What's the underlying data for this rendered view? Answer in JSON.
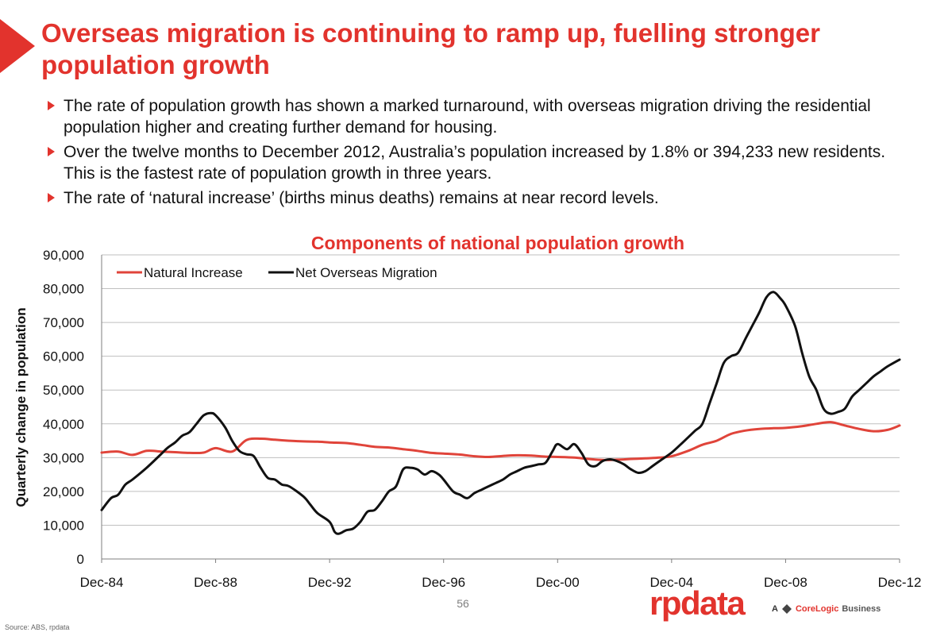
{
  "slide": {
    "title": "Overseas migration is continuing to ramp up, fuelling stronger population growth",
    "bullets": [
      "The rate of population growth has shown a marked turnaround, with overseas migration driving the residential population higher and creating further demand for housing.",
      "Over the twelve months to December 2012, Australia’s population increased by 1.8% or 394,233 new residents.  This is the fastest rate of population growth in three years.",
      "The rate of ‘natural increase’ (births minus deaths) remains at near record levels."
    ],
    "page_number": "56",
    "source": "Source:  ABS, rpdata",
    "logo_text": "rpdata",
    "logo_tagline": {
      "prefix": "A",
      "brand": "CoreLogic",
      "suffix": "Business"
    },
    "accent_color": "#e2332d"
  },
  "chart_data": {
    "type": "line",
    "title": "Components of national population growth",
    "xlabel": "",
    "ylabel": "Quarterly change in population",
    "ylim": [
      0,
      90000
    ],
    "yticks": [
      0,
      10000,
      20000,
      30000,
      40000,
      50000,
      60000,
      70000,
      80000,
      90000
    ],
    "ytick_labels": [
      "0",
      "10,000",
      "20,000",
      "30,000",
      "40,000",
      "50,000",
      "60,000",
      "70,000",
      "80,000",
      "90,000"
    ],
    "x_start": "Dec-84",
    "x_end": "Dec-12",
    "x_ticks": [
      {
        "label": "Dec-84",
        "year": 1984.92
      },
      {
        "label": "Dec-88",
        "year": 1988.92
      },
      {
        "label": "Dec-92",
        "year": 1992.92
      },
      {
        "label": "Dec-96",
        "year": 1996.92
      },
      {
        "label": "Dec-00",
        "year": 2000.92
      },
      {
        "label": "Dec-04",
        "year": 2004.92
      },
      {
        "label": "Dec-08",
        "year": 2008.92
      },
      {
        "label": "Dec-12",
        "year": 2012.92
      }
    ],
    "grid": true,
    "legend_position": "top-left",
    "series": [
      {
        "name": "Natural Increase",
        "color": "#e0443a",
        "points": [
          [
            1984.92,
            31500
          ],
          [
            1985.5,
            31800
          ],
          [
            1986.0,
            30800
          ],
          [
            1986.5,
            32000
          ],
          [
            1987.0,
            31800
          ],
          [
            1987.5,
            31600
          ],
          [
            1988.0,
            31400
          ],
          [
            1988.5,
            31500
          ],
          [
            1988.92,
            32800
          ],
          [
            1989.5,
            31800
          ],
          [
            1990.0,
            35200
          ],
          [
            1990.5,
            35600
          ],
          [
            1991.0,
            35300
          ],
          [
            1991.5,
            35000
          ],
          [
            1992.0,
            34800
          ],
          [
            1992.5,
            34700
          ],
          [
            1992.92,
            34500
          ],
          [
            1993.5,
            34300
          ],
          [
            1994.0,
            33800
          ],
          [
            1994.5,
            33200
          ],
          [
            1995.0,
            33000
          ],
          [
            1995.5,
            32500
          ],
          [
            1996.0,
            32000
          ],
          [
            1996.5,
            31400
          ],
          [
            1996.92,
            31200
          ],
          [
            1997.5,
            30900
          ],
          [
            1998.0,
            30400
          ],
          [
            1998.5,
            30200
          ],
          [
            1999.0,
            30500
          ],
          [
            1999.5,
            30700
          ],
          [
            2000.0,
            30600
          ],
          [
            2000.5,
            30300
          ],
          [
            2000.92,
            30200
          ],
          [
            2001.5,
            30000
          ],
          [
            2002.0,
            29600
          ],
          [
            2002.5,
            29300
          ],
          [
            2003.0,
            29400
          ],
          [
            2003.5,
            29600
          ],
          [
            2004.0,
            29800
          ],
          [
            2004.5,
            30000
          ],
          [
            2004.92,
            30400
          ],
          [
            2005.5,
            32000
          ],
          [
            2006.0,
            33800
          ],
          [
            2006.5,
            35000
          ],
          [
            2007.0,
            37000
          ],
          [
            2007.5,
            38000
          ],
          [
            2008.0,
            38500
          ],
          [
            2008.5,
            38700
          ],
          [
            2008.92,
            38800
          ],
          [
            2009.5,
            39300
          ],
          [
            2010.0,
            40000
          ],
          [
            2010.5,
            40500
          ],
          [
            2011.0,
            39500
          ],
          [
            2011.5,
            38500
          ],
          [
            2012.0,
            37800
          ],
          [
            2012.5,
            38200
          ],
          [
            2012.92,
            39500
          ]
        ]
      },
      {
        "name": "Net Overseas Migration",
        "color": "#111111",
        "points": [
          [
            1984.92,
            14500
          ],
          [
            1985.25,
            18000
          ],
          [
            1985.5,
            19000
          ],
          [
            1985.75,
            22000
          ],
          [
            1986.0,
            23500
          ],
          [
            1986.5,
            27000
          ],
          [
            1987.0,
            31000
          ],
          [
            1987.25,
            33000
          ],
          [
            1987.5,
            34500
          ],
          [
            1987.75,
            36500
          ],
          [
            1988.0,
            37500
          ],
          [
            1988.25,
            40000
          ],
          [
            1988.5,
            42500
          ],
          [
            1988.75,
            43200
          ],
          [
            1988.92,
            42500
          ],
          [
            1989.25,
            39000
          ],
          [
            1989.5,
            35000
          ],
          [
            1989.75,
            32000
          ],
          [
            1990.0,
            31000
          ],
          [
            1990.25,
            30500
          ],
          [
            1990.5,
            27000
          ],
          [
            1990.75,
            24000
          ],
          [
            1991.0,
            23500
          ],
          [
            1991.25,
            22000
          ],
          [
            1991.5,
            21500
          ],
          [
            1992.0,
            18500
          ],
          [
            1992.25,
            16000
          ],
          [
            1992.5,
            13500
          ],
          [
            1992.92,
            11000
          ],
          [
            1993.1,
            8000
          ],
          [
            1993.25,
            7500
          ],
          [
            1993.5,
            8500
          ],
          [
            1993.75,
            9000
          ],
          [
            1994.0,
            11000
          ],
          [
            1994.25,
            14000
          ],
          [
            1994.5,
            14500
          ],
          [
            1994.75,
            17000
          ],
          [
            1995.0,
            20000
          ],
          [
            1995.25,
            21500
          ],
          [
            1995.5,
            26500
          ],
          [
            1995.75,
            27000
          ],
          [
            1996.0,
            26500
          ],
          [
            1996.25,
            25000
          ],
          [
            1996.5,
            26000
          ],
          [
            1996.75,
            25000
          ],
          [
            1996.92,
            23500
          ],
          [
            1997.25,
            20000
          ],
          [
            1997.5,
            19000
          ],
          [
            1997.75,
            18000
          ],
          [
            1998.0,
            19500
          ],
          [
            1998.25,
            20500
          ],
          [
            1998.5,
            21500
          ],
          [
            1998.75,
            22500
          ],
          [
            1999.0,
            23500
          ],
          [
            1999.25,
            25000
          ],
          [
            1999.5,
            26000
          ],
          [
            1999.75,
            27000
          ],
          [
            2000.0,
            27500
          ],
          [
            2000.25,
            28000
          ],
          [
            2000.5,
            28500
          ],
          [
            2000.75,
            32000
          ],
          [
            2000.92,
            34000
          ],
          [
            2001.25,
            32500
          ],
          [
            2001.5,
            34000
          ],
          [
            2001.75,
            31500
          ],
          [
            2002.0,
            28000
          ],
          [
            2002.25,
            27500
          ],
          [
            2002.5,
            29000
          ],
          [
            2002.75,
            29500
          ],
          [
            2003.0,
            29000
          ],
          [
            2003.25,
            28000
          ],
          [
            2003.5,
            26500
          ],
          [
            2003.75,
            25500
          ],
          [
            2004.0,
            26000
          ],
          [
            2004.25,
            27500
          ],
          [
            2004.5,
            29000
          ],
          [
            2004.92,
            31500
          ],
          [
            2005.25,
            34000
          ],
          [
            2005.5,
            36000
          ],
          [
            2005.75,
            38000
          ],
          [
            2006.0,
            40000
          ],
          [
            2006.25,
            46000
          ],
          [
            2006.5,
            52000
          ],
          [
            2006.75,
            58000
          ],
          [
            2007.0,
            60000
          ],
          [
            2007.25,
            61000
          ],
          [
            2007.5,
            65000
          ],
          [
            2007.75,
            69000
          ],
          [
            2008.0,
            73000
          ],
          [
            2008.25,
            77500
          ],
          [
            2008.5,
            79000
          ],
          [
            2008.75,
            77000
          ],
          [
            2008.92,
            75000
          ],
          [
            2009.25,
            69000
          ],
          [
            2009.5,
            61000
          ],
          [
            2009.75,
            54000
          ],
          [
            2010.0,
            50000
          ],
          [
            2010.25,
            44500
          ],
          [
            2010.5,
            43000
          ],
          [
            2010.75,
            43500
          ],
          [
            2011.0,
            44500
          ],
          [
            2011.25,
            48000
          ],
          [
            2011.5,
            50000
          ],
          [
            2011.75,
            52000
          ],
          [
            2012.0,
            54000
          ],
          [
            2012.25,
            55500
          ],
          [
            2012.5,
            57000
          ],
          [
            2012.92,
            59000
          ]
        ]
      }
    ]
  }
}
